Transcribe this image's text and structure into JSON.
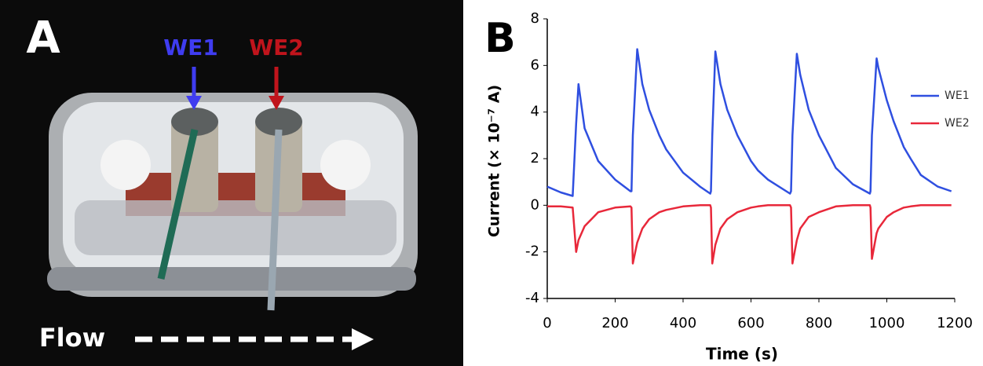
{
  "panel_a": {
    "label": "A",
    "electrodes": [
      "WE1",
      "WE2"
    ],
    "flow": "Flow"
  },
  "chart_data": {
    "type": "line",
    "panel_label": "B",
    "x_label": "Time (s)",
    "y_label": "Current (× 10⁻⁷ A)",
    "x": [
      0,
      40,
      75,
      85,
      92,
      110,
      150,
      200,
      245,
      248,
      252,
      265,
      280,
      300,
      330,
      350,
      400,
      450,
      480,
      482,
      486,
      495,
      510,
      530,
      560,
      600,
      620,
      650,
      715,
      718,
      722,
      735,
      745,
      770,
      800,
      850,
      900,
      950,
      952,
      956,
      970,
      975,
      1000,
      1020,
      1050,
      1070,
      1100,
      1150,
      1190
    ],
    "series": [
      {
        "name": "WE1",
        "color": "#2f4fe0",
        "values": [
          0.8,
          0.55,
          0.4,
          3.5,
          5.2,
          3.3,
          1.9,
          1.1,
          0.6,
          0.6,
          3.0,
          6.7,
          5.2,
          4.1,
          3.0,
          2.4,
          1.4,
          0.8,
          0.5,
          0.6,
          3.0,
          6.6,
          5.2,
          4.1,
          3.0,
          1.9,
          1.5,
          1.1,
          0.5,
          0.6,
          3.0,
          6.5,
          5.6,
          4.1,
          3.0,
          1.6,
          0.9,
          0.5,
          0.6,
          3.0,
          6.3,
          5.9,
          4.5,
          3.6,
          2.5,
          2.0,
          1.3,
          0.8,
          0.6
        ]
      },
      {
        "name": "WE2",
        "color": "#e8283a",
        "values": [
          -0.05,
          -0.05,
          -0.1,
          -2.0,
          -1.5,
          -0.9,
          -0.3,
          -0.1,
          -0.05,
          -0.1,
          -2.5,
          -1.6,
          -1.0,
          -0.6,
          -0.3,
          -0.2,
          -0.05,
          0,
          0,
          -0.1,
          -2.5,
          -1.7,
          -1.0,
          -0.6,
          -0.3,
          -0.1,
          -0.05,
          0,
          0,
          -0.1,
          -2.5,
          -1.5,
          -1.0,
          -0.5,
          -0.3,
          -0.05,
          0,
          0,
          -0.1,
          -2.3,
          -1.2,
          -1.0,
          -0.5,
          -0.3,
          -0.1,
          -0.05,
          0,
          0,
          0
        ]
      }
    ],
    "xlim": [
      0,
      1200
    ],
    "xticks": [
      0,
      200,
      400,
      600,
      800,
      1000,
      1200
    ],
    "ylim": [
      -4,
      8
    ],
    "yticks": [
      -4,
      -2,
      0,
      2,
      4,
      6,
      8
    ],
    "grid": false,
    "legend": "right"
  }
}
